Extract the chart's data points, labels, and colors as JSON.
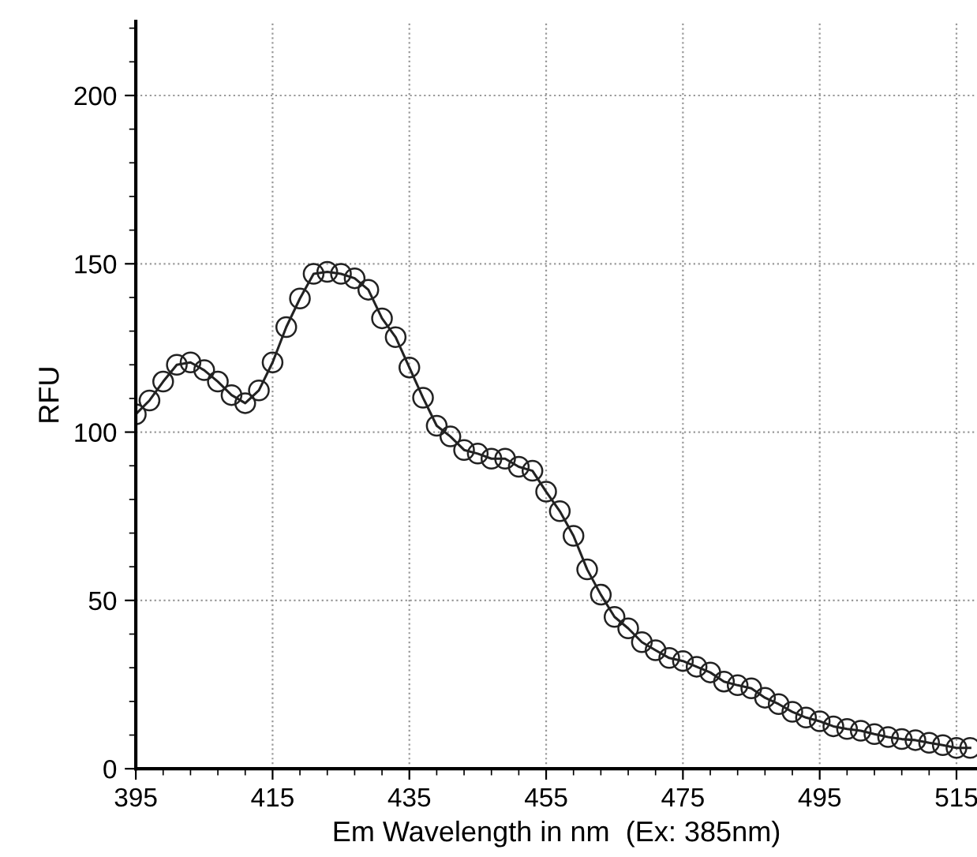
{
  "chart_data": {
    "type": "line",
    "xlabel": "Em Wavelength in nm  (Ex: 385nm)",
    "ylabel": "RFU",
    "x": [
      395,
      397,
      399,
      401,
      403,
      405,
      407,
      409,
      411,
      413,
      415,
      417,
      419,
      421,
      423,
      425,
      427,
      429,
      431,
      433,
      435,
      437,
      439,
      441,
      443,
      445,
      447,
      449,
      451,
      453,
      455,
      457,
      459,
      461,
      463,
      465,
      467,
      469,
      471,
      473,
      475,
      477,
      479,
      481,
      483,
      485,
      487,
      489,
      491,
      493,
      495,
      497,
      499,
      501,
      503,
      505,
      507,
      509,
      511,
      513,
      515,
      517
    ],
    "series": [
      {
        "color": "#222222",
        "values": [
          105.3,
          109.4,
          115,
          120,
          120.7,
          118.4,
          115,
          111,
          108.6,
          112.4,
          120.7,
          131.2,
          139.7,
          147,
          147.6,
          147,
          145.7,
          142.3,
          133.8,
          128.2,
          119.2,
          110.2,
          101.9,
          98.7,
          94.7,
          93.6,
          92.1,
          92.1,
          89.7,
          88.5,
          82.3,
          76.5,
          69.2,
          59.2,
          51.7,
          45.1,
          41.7,
          37.6,
          35.2,
          32.9,
          32,
          30.3,
          28.6,
          25.9,
          24.8,
          23.9,
          21.1,
          19.2,
          16.9,
          15.2,
          14.1,
          12.6,
          11.8,
          11.3,
          10.3,
          9.4,
          8.8,
          8.5,
          7.7,
          7,
          6.2,
          6.2
        ]
      }
    ],
    "xlim": [
      395,
      518
    ],
    "xticks": [
      395,
      415,
      435,
      455,
      475,
      495,
      515
    ],
    "ylim": [
      0,
      222
    ],
    "yticks": [
      0,
      50,
      100,
      150,
      200
    ],
    "grid": true,
    "marker": "circle",
    "line_style": "solid",
    "legend": false
  }
}
